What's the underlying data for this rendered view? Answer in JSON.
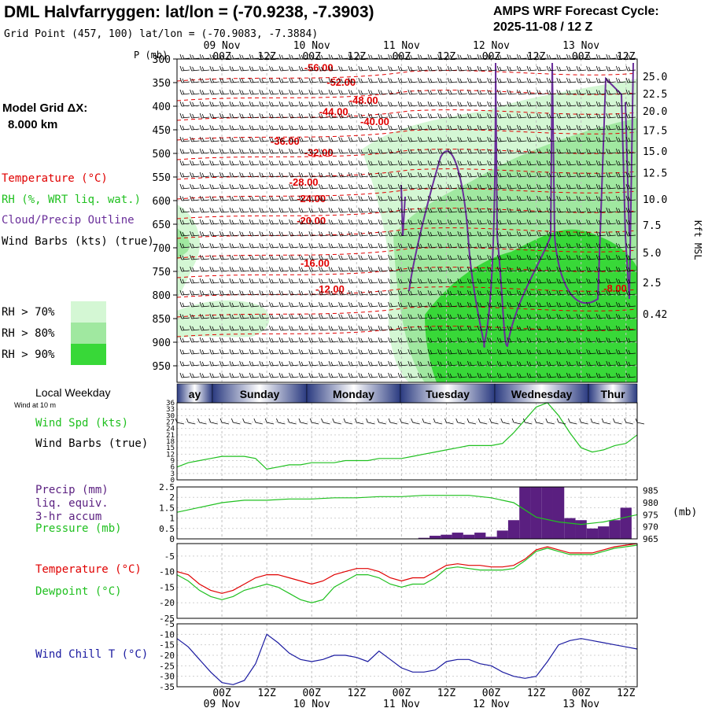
{
  "header": {
    "title": "DML Halvfarryggen:  lat/lon = (-70.9238, -7.3903)",
    "grid_point": "Grid Point (457, 100) lat/lon = (-70.9083, -7.3884)",
    "cycle_line1": "AMPS WRF Forecast Cycle:",
    "cycle_line2": "2025-11-08 / 12  Z"
  },
  "left_panel": {
    "model_grid_label": "Model Grid ΔX:",
    "model_grid_value": "8.000 km",
    "legend_temperature": "Temperature (°C)",
    "legend_rh": "RH (%, WRT liq. wat.)",
    "legend_cloud": "Cloud/Precip Outline",
    "legend_wind": "Wind Barbs (kts) (true)",
    "rh_levels": [
      {
        "label": "RH > 70%",
        "color": "#d4f7d4"
      },
      {
        "label": "RH > 80%",
        "color": "#a0e8a0"
      },
      {
        "label": "RH > 90%",
        "color": "#38d838"
      }
    ]
  },
  "colors": {
    "temperature": "#e00000",
    "rh70": "#d4f7d4",
    "rh80": "#a0e8a0",
    "rh90": "#38d838",
    "cloud_outline": "#6a2f9a",
    "wind_speed": "#20c020",
    "precip_bar": "#5a1f80",
    "dewpoint": "#20c020",
    "wind_chill": "#1a1aa0",
    "weekday_band": "#2a3a80"
  },
  "chart_data": [
    {
      "type": "heatmap",
      "name": "time-height cross section",
      "ylabel": "P (mb)",
      "y2label": "Kft MSL",
      "pressure_ticks": [
        300,
        350,
        400,
        450,
        500,
        550,
        600,
        650,
        700,
        750,
        800,
        850,
        900,
        950
      ],
      "pressure_tick_labels": [
        "300",
        "350",
        "400",
        "450",
        "500",
        "550",
        "600",
        "650",
        "700",
        "750",
        "800",
        "850",
        "900",
        "950"
      ],
      "ylim": [
        300,
        985
      ],
      "height_ticks": [
        {
          "label": "25.0",
          "p": 337
        },
        {
          "label": "22.5",
          "p": 373
        },
        {
          "label": "20.0",
          "p": 410
        },
        {
          "label": "17.5",
          "p": 451
        },
        {
          "label": "15.0",
          "p": 495
        },
        {
          "label": "12.5",
          "p": 541
        },
        {
          "label": "10.0",
          "p": 597
        },
        {
          "label": "7.5",
          "p": 652
        },
        {
          "label": "5.0",
          "p": 710
        },
        {
          "label": "2.5",
          "p": 773
        },
        {
          "label": "0.42",
          "p": 840
        }
      ],
      "time_ticks_top": [
        {
          "hour": 12,
          "label": "00Z",
          "date": "09 Nov"
        },
        {
          "hour": 24,
          "label": "12Z",
          "date": ""
        },
        {
          "hour": 36,
          "label": "00Z",
          "date": "10 Nov"
        },
        {
          "hour": 48,
          "label": "12Z",
          "date": ""
        },
        {
          "hour": 60,
          "label": "00Z",
          "date": "11 Nov"
        },
        {
          "hour": 72,
          "label": "12Z",
          "date": ""
        },
        {
          "hour": 84,
          "label": "00Z",
          "date": "12 Nov"
        },
        {
          "hour": 96,
          "label": "12Z",
          "date": ""
        },
        {
          "hour": 108,
          "label": "00Z",
          "date": "13 Nov"
        },
        {
          "hour": 120,
          "label": "12Z",
          "date": ""
        }
      ],
      "temperature_contour_labels": [
        {
          "text": "-56.00",
          "hour": 34,
          "p": 326
        },
        {
          "text": "-52.00",
          "hour": 40,
          "p": 357
        },
        {
          "text": "-48.00",
          "hour": 46,
          "p": 395
        },
        {
          "text": "-44.00",
          "hour": 38,
          "p": 419
        },
        {
          "text": "-40.00",
          "hour": 49,
          "p": 440
        },
        {
          "text": "-36.00",
          "hour": 25,
          "p": 482
        },
        {
          "text": "-32.00",
          "hour": 34,
          "p": 506
        },
        {
          "text": "-28.00",
          "hour": 30,
          "p": 568
        },
        {
          "text": "-24.00",
          "hour": 32,
          "p": 603
        },
        {
          "text": "-20.00",
          "hour": 32,
          "p": 650
        },
        {
          "text": "-16.00",
          "hour": 33,
          "p": 740
        },
        {
          "text": "-12.00",
          "hour": 37,
          "p": 795
        },
        {
          "text": "-8.00",
          "hour": 114,
          "p": 793
        }
      ]
    },
    {
      "type": "line",
      "name": "weekday band",
      "weekdays": [
        "ay",
        "Sunday",
        "Monday",
        "Tuesday",
        "Wednesday",
        "Thur"
      ],
      "local_weekday_label": "Local Weekday",
      "wind_at_10m_label": "Wind at 10 m"
    },
    {
      "type": "line",
      "name": "10 m wind speed",
      "ylabel": "Wind Spd (kts)",
      "y2label": "Wind Barbs (true)",
      "ylim": [
        0,
        36
      ],
      "yticks": [
        0,
        3,
        6,
        9,
        12,
        15,
        18,
        21,
        24,
        27,
        30,
        33,
        36
      ],
      "x_hours": [
        0,
        3,
        6,
        9,
        12,
        15,
        18,
        21,
        24,
        27,
        30,
        33,
        36,
        39,
        42,
        45,
        48,
        51,
        54,
        57,
        60,
        63,
        66,
        69,
        72,
        75,
        78,
        81,
        84,
        87,
        90,
        93,
        96,
        99,
        102,
        105,
        108,
        111,
        114,
        117,
        120,
        123
      ],
      "values": [
        6,
        8,
        9,
        10,
        11,
        11,
        11,
        10,
        5,
        6,
        7,
        7,
        8,
        8,
        8,
        9,
        9,
        9,
        10,
        10,
        10,
        11,
        12,
        13,
        14,
        15,
        16,
        16,
        16,
        17,
        22,
        28,
        34,
        36,
        30,
        22,
        15,
        13,
        14,
        16,
        17,
        21
      ]
    },
    {
      "type": "bar",
      "name": "precip and pressure",
      "ylabel": "Precip (mm)",
      "ylabel_lines": [
        "Precip (mm)",
        "liq. equiv.",
        "3-hr accum"
      ],
      "y2label_text": "Pressure (mb)",
      "pressure_unit": "(mb)",
      "ylim": [
        0,
        2.5
      ],
      "yticks": [
        0,
        0.5,
        1,
        1.5,
        2,
        2.5
      ],
      "y2lim": [
        965,
        986.5
      ],
      "y2ticks": [
        965,
        970,
        975,
        980,
        985
      ],
      "precip_x_hours": [
        66,
        69,
        72,
        75,
        78,
        81,
        84,
        87,
        90,
        93,
        96,
        99,
        102,
        105,
        108,
        111,
        114,
        117,
        120
      ],
      "precip_values": [
        0.05,
        0.15,
        0.2,
        0.3,
        0.2,
        0.3,
        0.1,
        0.4,
        0.9,
        2.5,
        2.5,
        2.5,
        2.5,
        1.0,
        0.9,
        0.5,
        0.6,
        0.9,
        1.5
      ],
      "pressure_x_hours": [
        0,
        6,
        12,
        18,
        24,
        30,
        36,
        42,
        48,
        54,
        60,
        66,
        72,
        78,
        84,
        90,
        96,
        102,
        108,
        114,
        120,
        123
      ],
      "pressure_values": [
        976,
        978,
        980,
        981,
        981,
        981.5,
        981.5,
        982,
        982,
        982.5,
        982.5,
        983,
        983,
        983,
        982,
        980,
        974,
        972,
        971,
        972,
        974,
        975
      ]
    },
    {
      "type": "line",
      "name": "temperature and dewpoint",
      "ylim": [
        -25,
        -1
      ],
      "yticks": [
        -5,
        -10,
        -15,
        -20,
        -25
      ],
      "x_hours": [
        0,
        3,
        6,
        9,
        12,
        15,
        18,
        21,
        24,
        27,
        30,
        33,
        36,
        39,
        42,
        45,
        48,
        51,
        54,
        57,
        60,
        63,
        66,
        69,
        72,
        75,
        78,
        81,
        84,
        87,
        90,
        93,
        96,
        99,
        102,
        105,
        108,
        111,
        114,
        117,
        120,
        123
      ],
      "series": [
        {
          "name": "Temperature (°C)",
          "color": "#e00000",
          "values": [
            -10,
            -11,
            -14,
            -16,
            -17,
            -16,
            -14,
            -12,
            -11,
            -11,
            -12,
            -13,
            -14,
            -13,
            -11,
            -10,
            -9,
            -9,
            -10,
            -12,
            -13,
            -12,
            -12,
            -10,
            -8,
            -7.5,
            -8,
            -8,
            -8.5,
            -8.5,
            -8,
            -6,
            -3,
            -2,
            -3,
            -4,
            -4,
            -4,
            -3,
            -2,
            -1.5,
            -1
          ],
          "label": "Temperature (°C)"
        },
        {
          "name": "Dewpoint (°C)",
          "color": "#20c020",
          "values": [
            -11,
            -13,
            -16,
            -18,
            -19,
            -18,
            -16,
            -15,
            -14,
            -15,
            -17,
            -19,
            -20,
            -19,
            -15,
            -13,
            -11,
            -11,
            -12,
            -14,
            -15,
            -14,
            -14,
            -12,
            -9,
            -8.5,
            -9,
            -9.5,
            -9.5,
            -9.5,
            -9,
            -6.5,
            -3.5,
            -2.5,
            -3.5,
            -4.5,
            -4.5,
            -4.5,
            -3.5,
            -2.5,
            -2,
            -1.5
          ],
          "label": "Dewpoint (°C)"
        }
      ]
    },
    {
      "type": "line",
      "name": "wind chill",
      "ylabel": "Wind Chill T (°C)",
      "ylim": [
        -35,
        -5
      ],
      "yticks": [
        -5,
        -10,
        -15,
        -20,
        -25,
        -30,
        -35
      ],
      "x_hours": [
        0,
        3,
        6,
        9,
        12,
        15,
        18,
        21,
        24,
        27,
        30,
        33,
        36,
        39,
        42,
        45,
        48,
        51,
        54,
        57,
        60,
        63,
        66,
        69,
        72,
        75,
        78,
        81,
        84,
        87,
        90,
        93,
        96,
        99,
        102,
        105,
        108,
        111,
        114,
        117,
        120,
        123
      ],
      "values": [
        -12,
        -16,
        -22,
        -28,
        -33,
        -34,
        -32,
        -24,
        -10,
        -14,
        -19,
        -22,
        -23,
        -22,
        -20,
        -20,
        -21,
        -23,
        -18,
        -22,
        -26,
        -28,
        -28,
        -27,
        -23,
        -22,
        -22,
        -24,
        -25,
        -28,
        -30,
        -31,
        -30,
        -23,
        -15,
        -13,
        -12,
        -13,
        -14,
        -15,
        -16,
        -17
      ],
      "time_ticks_bottom": [
        {
          "hour": 12,
          "label": "00Z",
          "date": "09 Nov"
        },
        {
          "hour": 24,
          "label": "12Z",
          "date": ""
        },
        {
          "hour": 36,
          "label": "00Z",
          "date": "10 Nov"
        },
        {
          "hour": 48,
          "label": "12Z",
          "date": ""
        },
        {
          "hour": 60,
          "label": "00Z",
          "date": "11 Nov"
        },
        {
          "hour": 72,
          "label": "12Z",
          "date": ""
        },
        {
          "hour": 84,
          "label": "00Z",
          "date": "12 Nov"
        },
        {
          "hour": 96,
          "label": "12Z",
          "date": ""
        },
        {
          "hour": 108,
          "label": "00Z",
          "date": "13 Nov"
        },
        {
          "hour": 120,
          "label": "12Z",
          "date": ""
        }
      ]
    }
  ]
}
